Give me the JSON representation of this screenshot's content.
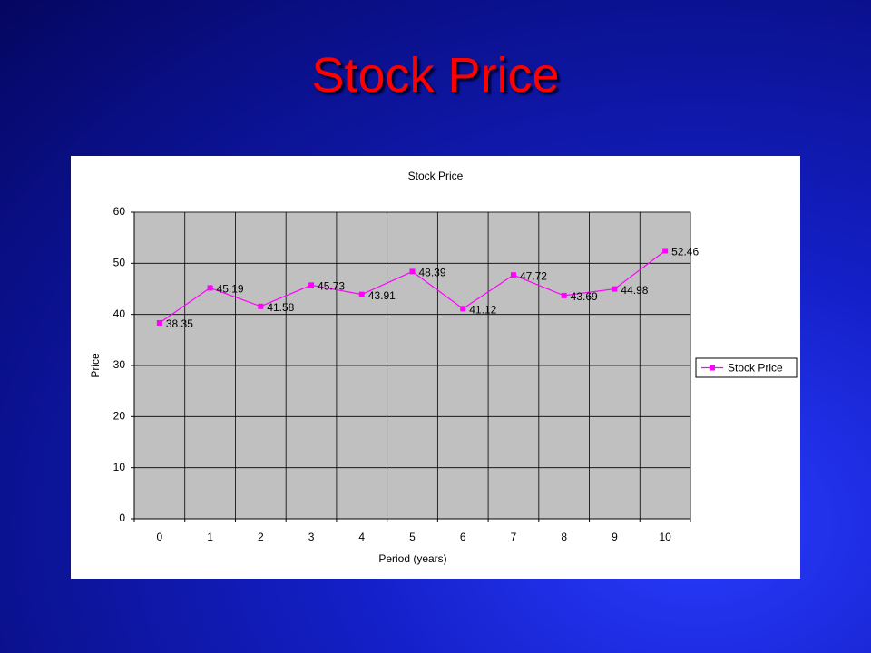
{
  "slide_title": "Stock Price",
  "chart_data": {
    "type": "line",
    "title": "Stock Price",
    "x_label": "Period (years)",
    "y_label": "Price",
    "categories": [
      "0",
      "1",
      "2",
      "3",
      "4",
      "5",
      "6",
      "7",
      "8",
      "9",
      "10"
    ],
    "series": [
      {
        "name": "Stock Price",
        "color": "#ff00ff",
        "values": [
          38.35,
          45.19,
          41.58,
          45.73,
          43.91,
          48.39,
          41.12,
          47.72,
          43.69,
          44.98,
          52.46
        ]
      }
    ],
    "ylim": [
      0,
      60
    ],
    "yticks": [
      0,
      10,
      20,
      30,
      40,
      50,
      60
    ],
    "grid": true,
    "data_labels": true,
    "legend": "right",
    "plot_background": "#c0c0c0"
  }
}
